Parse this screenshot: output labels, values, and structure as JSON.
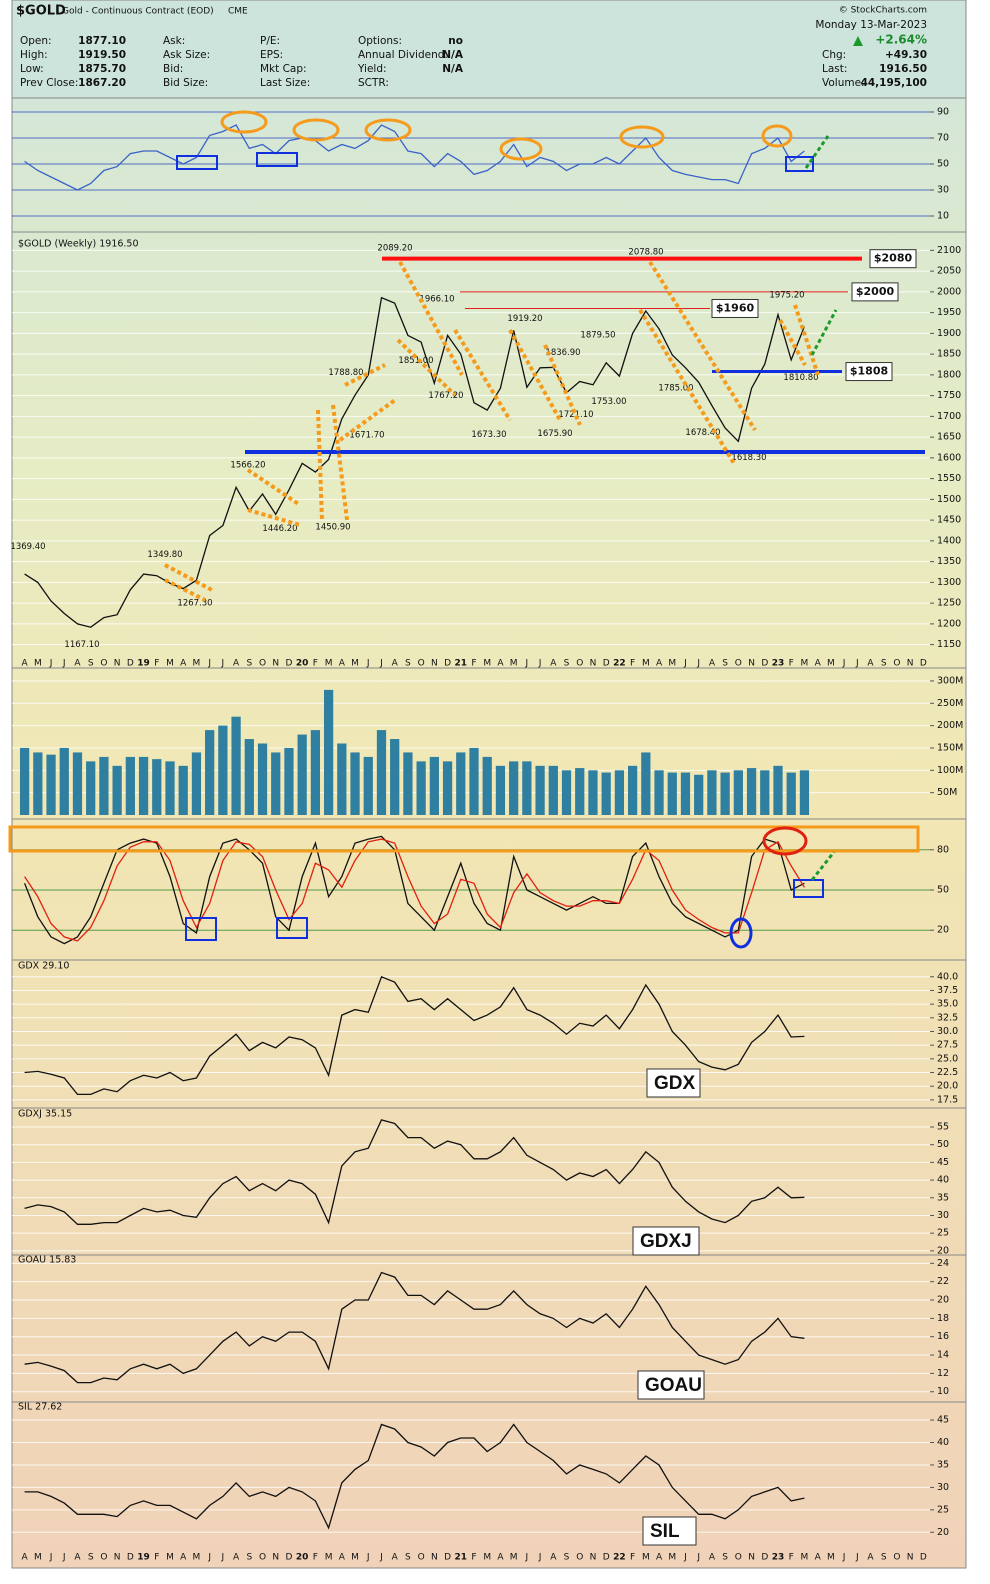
{
  "header": {
    "symbol": "$GOLD",
    "name": "Gold - Continuous Contract (EOD)",
    "exchange": "CME",
    "copyright": "© StockCharts.com",
    "date": "Monday 13-Mar-2023",
    "change_pct": "+2.64%",
    "columns": [
      [
        {
          "label": "Open:",
          "value": "1877.10"
        },
        {
          "label": "High:",
          "value": "1919.50"
        },
        {
          "label": "Low:",
          "value": "1875.70"
        },
        {
          "label": "Prev Close:",
          "value": "1867.20"
        }
      ],
      [
        {
          "label": "Ask:"
        },
        {
          "label": "Ask Size:"
        },
        {
          "label": "Bid:"
        },
        {
          "label": "Bid Size:"
        }
      ],
      [
        {
          "label": "P/E:"
        },
        {
          "label": "EPS:"
        },
        {
          "label": "Mkt Cap:"
        },
        {
          "label": "Last Size:"
        }
      ],
      [
        {
          "label": "Options:",
          "value": "no"
        },
        {
          "label": "Annual Dividend:",
          "value": "N/A"
        },
        {
          "label": "Yield:",
          "value": "N/A"
        },
        {
          "label": "SCTR:"
        }
      ],
      [
        {
          "label": "Chg:",
          "value": "+49.30"
        },
        {
          "label": "Last:",
          "value": "1916.50"
        },
        {
          "label": "Volume:",
          "value": "44,195,100"
        }
      ]
    ]
  },
  "chart_data": [
    {
      "type": "line",
      "ylim": [
        0,
        100
      ],
      "yticks": [
        10,
        30,
        50,
        70,
        90
      ],
      "grid_color": "#3050c0",
      "series": [
        {
          "color": "#3a62c8",
          "values": [
            52,
            45,
            40,
            35,
            30,
            35,
            45,
            48,
            58,
            60,
            60,
            55,
            50,
            55,
            72,
            75,
            80,
            62,
            65,
            58,
            68,
            70,
            68,
            60,
            65,
            62,
            68,
            80,
            75,
            60,
            58,
            48,
            58,
            52,
            42,
            45,
            52,
            65,
            48,
            55,
            52,
            45,
            50,
            50,
            55,
            50,
            60,
            70,
            55,
            45,
            42,
            40,
            38,
            38,
            35,
            58,
            62,
            70,
            52,
            60,
            null,
            null,
            null,
            null,
            null,
            null,
            null,
            null,
            null
          ]
        }
      ]
    },
    {
      "type": "line",
      "title": "$GOLD (Weekly) 1916.50",
      "categories": [
        "A",
        "M",
        "J",
        "J",
        "A",
        "S",
        "O",
        "N",
        "D",
        "19",
        "F",
        "M",
        "A",
        "M",
        "J",
        "J",
        "A",
        "S",
        "O",
        "N",
        "D",
        "20",
        "F",
        "M",
        "A",
        "M",
        "J",
        "J",
        "A",
        "S",
        "O",
        "N",
        "D",
        "21",
        "F",
        "M",
        "A",
        "M",
        "J",
        "J",
        "A",
        "S",
        "O",
        "N",
        "D",
        "22",
        "F",
        "M",
        "A",
        "M",
        "J",
        "J",
        "A",
        "S",
        "O",
        "N",
        "D",
        "23",
        "F",
        "M",
        "A",
        "M",
        "J",
        "J",
        "A",
        "S",
        "O",
        "N",
        "D"
      ],
      "ylim": [
        1125,
        2125
      ],
      "yticks": [
        1150,
        1200,
        1250,
        1300,
        1350,
        1400,
        1450,
        1500,
        1550,
        1600,
        1650,
        1700,
        1750,
        1800,
        1850,
        1900,
        1950,
        2000,
        2050,
        2100
      ],
      "grid_color": "#ffffff",
      "series": [
        {
          "color": "#111111",
          "values": [
            1320,
            1300,
            1255,
            1225,
            1200,
            1192,
            1215,
            1222,
            1282,
            1320,
            1316,
            1298,
            1285,
            1305,
            1413,
            1437,
            1529,
            1472,
            1513,
            1464,
            1523,
            1587,
            1566,
            1596,
            1694,
            1751,
            1800,
            1986,
            1973,
            1895,
            1879,
            1780,
            1895,
            1850,
            1733,
            1715,
            1768,
            1907,
            1770,
            1817,
            1818,
            1757,
            1784,
            1776,
            1829,
            1797,
            1900,
            1954,
            1911,
            1848,
            1817,
            1782,
            1726,
            1672,
            1640,
            1768,
            1826,
            1945,
            1836,
            1916.5,
            null,
            null,
            null,
            null,
            null,
            null,
            null,
            null,
            null
          ]
        }
      ],
      "annotations": [
        {
          "value": 1369.4,
          "label": "1369.40"
        },
        {
          "value": 1167.1,
          "label": "1167.10"
        },
        {
          "value": 1349.8,
          "label": "1349.80"
        },
        {
          "value": 1267.3,
          "label": "1267.30"
        },
        {
          "value": 1566.2,
          "label": "1566.20"
        },
        {
          "value": 1446.2,
          "label": "1446.20"
        },
        {
          "value": 1450.9,
          "label": "1450.90"
        },
        {
          "value": 1788.8,
          "label": "1788.80"
        },
        {
          "value": 1671.7,
          "label": "1671.70"
        },
        {
          "value": 2089.2,
          "label": "2089.20"
        },
        {
          "value": 1966.1,
          "label": "1966.10"
        },
        {
          "value": 1851,
          "label": "1851.00"
        },
        {
          "value": 1767.2,
          "label": "1767.20"
        },
        {
          "value": 1673.3,
          "label": "1673.30"
        },
        {
          "value": 1919.2,
          "label": "1919.20"
        },
        {
          "value": 1836.9,
          "label": "1836.90"
        },
        {
          "value": 1675.9,
          "label": "1675.90"
        },
        {
          "value": 1721.1,
          "label": "1721.10"
        },
        {
          "value": 1879.5,
          "label": "1879.50"
        },
        {
          "value": 1753,
          "label": "1753.00"
        },
        {
          "value": 2078.8,
          "label": "2078.80"
        },
        {
          "value": 1785,
          "label": "1785.00"
        },
        {
          "value": 1678.4,
          "label": "1678.40"
        },
        {
          "value": 1618.3,
          "label": "1618.30"
        },
        {
          "value": 1975.2,
          "label": "1975.20"
        },
        {
          "value": 1810.8,
          "label": "1810.80"
        }
      ],
      "levels": [
        {
          "value": 2080,
          "label": "$2080",
          "color": "#ff1010"
        },
        {
          "value": 2000,
          "label": "$2000",
          "color": "#e02020"
        },
        {
          "value": 1960,
          "label": "$1960",
          "color": "#e02020"
        },
        {
          "value": 1808,
          "label": "$1808",
          "color": "#1030e0"
        }
      ]
    },
    {
      "type": "bar",
      "ylim": [
        0,
        320000000
      ],
      "yticks": [
        {
          "value": 50000000,
          "label": "50M"
        },
        {
          "value": 100000000,
          "label": "100M"
        },
        {
          "value": 150000000,
          "label": "150M"
        },
        {
          "value": 200000000,
          "label": "200M"
        },
        {
          "value": 250000000,
          "label": "250M"
        },
        {
          "value": 300000000,
          "label": "300M"
        }
      ],
      "grid_color": "#ffffff",
      "color": "#2f7fa0",
      "values": [
        150000000,
        140000000,
        135000000,
        150000000,
        140000000,
        120000000,
        130000000,
        110000000,
        130000000,
        130000000,
        125000000,
        120000000,
        110000000,
        140000000,
        190000000,
        200000000,
        220000000,
        170000000,
        160000000,
        140000000,
        150000000,
        180000000,
        190000000,
        280000000,
        160000000,
        140000000,
        130000000,
        190000000,
        170000000,
        140000000,
        120000000,
        130000000,
        120000000,
        140000000,
        150000000,
        130000000,
        110000000,
        120000000,
        120000000,
        110000000,
        110000000,
        100000000,
        105000000,
        100000000,
        95000000,
        100000000,
        110000000,
        140000000,
        100000000,
        95000000,
        95000000,
        90000000,
        100000000,
        95000000,
        100000000,
        105000000,
        100000000,
        110000000,
        95000000,
        100000000,
        null,
        null,
        null,
        null,
        null,
        null,
        null,
        null,
        null
      ]
    },
    {
      "type": "line",
      "ylim": [
        0,
        100
      ],
      "yticks": [
        20,
        50,
        80
      ],
      "grid_color": "#2a8a2a",
      "series": [
        {
          "color": "#111111",
          "values": [
            55,
            30,
            15,
            10,
            15,
            30,
            55,
            80,
            85,
            88,
            85,
            60,
            25,
            18,
            60,
            85,
            88,
            80,
            70,
            30,
            20,
            60,
            85,
            45,
            60,
            85,
            88,
            90,
            80,
            40,
            30,
            20,
            45,
            70,
            40,
            25,
            20,
            75,
            50,
            45,
            40,
            35,
            40,
            45,
            40,
            40,
            75,
            85,
            60,
            40,
            30,
            25,
            20,
            15,
            20,
            75,
            88,
            85,
            50,
            55,
            null,
            null,
            null,
            null,
            null,
            null,
            null,
            null,
            null
          ]
        },
        {
          "color": "#e02010",
          "values": [
            60,
            45,
            25,
            15,
            12,
            22,
            42,
            68,
            82,
            86,
            86,
            72,
            42,
            22,
            40,
            72,
            86,
            84,
            75,
            50,
            28,
            40,
            70,
            65,
            52,
            72,
            86,
            88,
            85,
            60,
            38,
            25,
            32,
            58,
            55,
            32,
            22,
            48,
            62,
            48,
            42,
            38,
            38,
            42,
            42,
            40,
            58,
            80,
            72,
            50,
            35,
            28,
            22,
            18,
            18,
            48,
            80,
            86,
            68,
            52,
            null,
            null,
            null,
            null,
            null,
            null,
            null,
            null,
            null
          ]
        }
      ]
    },
    {
      "type": "line",
      "title": "GDX 29.10",
      "badge": "GDX",
      "ylim": [
        16.2,
        42.7
      ],
      "yticks": [
        17.5,
        {
          "value": 20,
          "label": "20.0"
        },
        22.5,
        {
          "value": 25,
          "label": "25.0"
        },
        27.5,
        {
          "value": 30,
          "label": "30.0"
        },
        32.5,
        {
          "value": 35,
          "label": "35.0"
        },
        37.5,
        {
          "value": 40,
          "label": "40.0"
        }
      ],
      "grid_color": "#ffffff",
      "series": [
        {
          "color": "#111111",
          "values": [
            22.5,
            22.7,
            22.2,
            21.5,
            18.5,
            18.5,
            19.5,
            19,
            21,
            22,
            21.5,
            22.5,
            21,
            21.5,
            25.5,
            27.5,
            29.5,
            26.5,
            28,
            27,
            29,
            28.5,
            27,
            22,
            33,
            34,
            33.5,
            40,
            39,
            35.5,
            36,
            34,
            36,
            34,
            32,
            33,
            34.5,
            38,
            34,
            33,
            31.5,
            29.5,
            31.5,
            31,
            33,
            30.5,
            34,
            38.5,
            35,
            30,
            27.5,
            24.5,
            23.5,
            23,
            24,
            28,
            30,
            33,
            29,
            29.1,
            null,
            null,
            null,
            null,
            null,
            null,
            null,
            null,
            null
          ]
        }
      ]
    },
    {
      "type": "line",
      "title": "GDXJ 35.15",
      "badge": "GDXJ",
      "ylim": [
        19.4,
        59.8
      ],
      "yticks": [
        20,
        25,
        30,
        35,
        40,
        45,
        50,
        55
      ],
      "grid_color": "#ffffff",
      "series": [
        {
          "color": "#111111",
          "values": [
            32,
            33,
            32.5,
            31,
            27.5,
            27.5,
            28,
            28,
            30,
            32,
            31,
            31.5,
            30,
            29.5,
            35,
            39,
            41,
            37,
            39,
            37,
            40,
            39,
            36,
            28,
            44,
            48,
            49,
            57,
            56,
            52,
            52,
            49,
            51,
            50,
            46,
            46,
            48,
            52,
            47,
            45,
            43,
            40,
            42,
            41,
            43,
            39,
            43,
            48,
            45,
            38,
            34,
            31,
            29,
            28,
            30,
            34,
            35,
            38,
            35,
            35.15,
            null,
            null,
            null,
            null,
            null,
            null,
            null,
            null,
            null
          ]
        }
      ]
    },
    {
      "type": "line",
      "title": "GOAU 15.83",
      "badge": "GOAU",
      "ylim": [
        9.1,
        24.8
      ],
      "yticks": [
        10,
        12,
        14,
        16,
        18,
        20,
        22,
        24
      ],
      "grid_color": "#ffffff",
      "series": [
        {
          "color": "#111111",
          "values": [
            13,
            13.2,
            12.8,
            12.3,
            11,
            11,
            11.5,
            11.3,
            12.5,
            13,
            12.5,
            13,
            12,
            12.5,
            14,
            15.5,
            16.5,
            15,
            16,
            15.5,
            16.5,
            16.5,
            15.5,
            12.5,
            19,
            20,
            20,
            23,
            22.5,
            20.5,
            20.5,
            19.5,
            21,
            20,
            19,
            19,
            19.5,
            21,
            19.5,
            18.5,
            18,
            17,
            18,
            17.5,
            18.5,
            17,
            19,
            21.5,
            19.5,
            17,
            15.5,
            14,
            13.5,
            13,
            13.5,
            15.5,
            16.5,
            18,
            16,
            15.83,
            null,
            null,
            null,
            null,
            null,
            null,
            null,
            null,
            null
          ]
        }
      ]
    },
    {
      "type": "line",
      "title": "SIL 27.62",
      "badge": "SIL",
      "ylim": [
        16.5,
        48.8
      ],
      "yticks": [
        20,
        25,
        30,
        35,
        40,
        45
      ],
      "grid_color": "#ffffff",
      "series": [
        {
          "color": "#111111",
          "values": [
            29,
            29,
            28,
            26.5,
            24,
            24,
            24,
            23.5,
            26,
            27,
            26,
            26,
            24.5,
            23,
            26,
            28,
            31,
            28,
            29,
            28,
            30,
            29,
            27,
            21,
            31,
            34,
            36,
            44,
            43,
            40,
            39,
            37,
            40,
            41,
            41,
            38,
            40,
            44,
            40,
            38,
            36,
            33,
            35,
            34,
            33,
            31,
            34,
            37,
            35,
            30,
            27,
            24,
            24,
            23,
            25,
            28,
            29,
            30,
            27,
            27.62,
            null,
            null,
            null,
            null,
            null,
            null,
            null,
            null,
            null
          ]
        }
      ]
    }
  ]
}
